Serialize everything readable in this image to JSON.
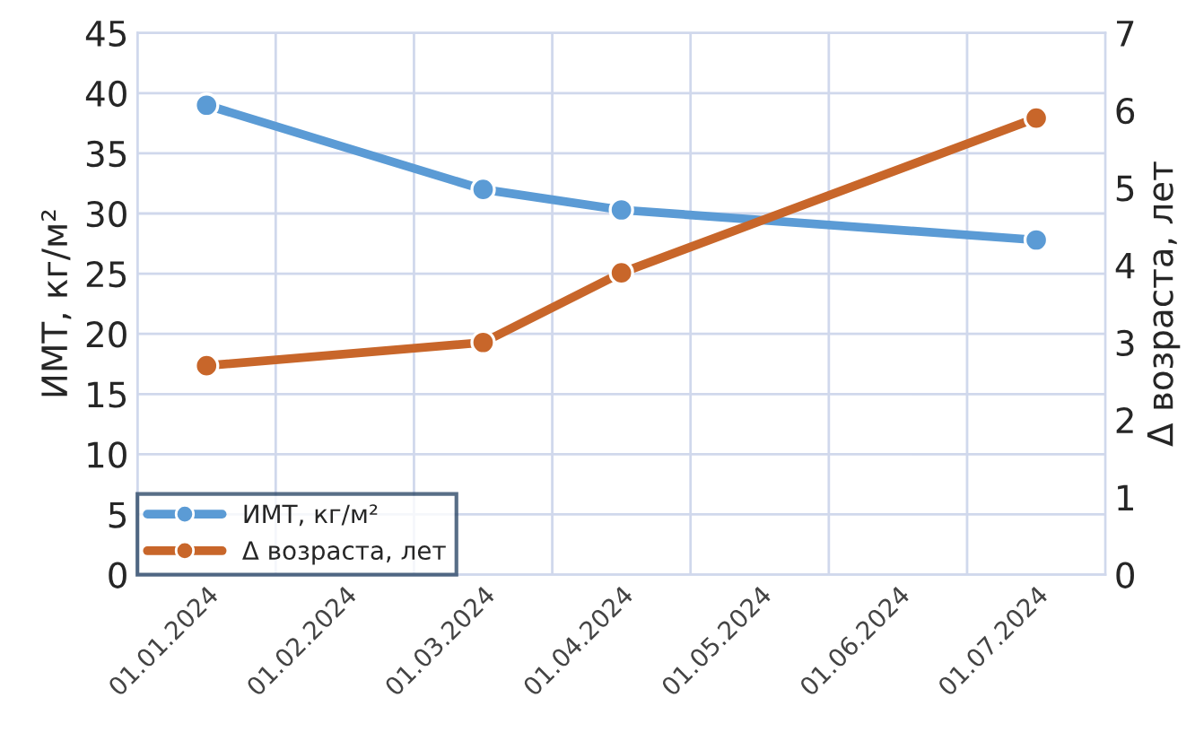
{
  "chart_data": {
    "type": "line",
    "categories": [
      "01.01.2024",
      "01.02.2024",
      "01.03.2024",
      "01.04.2024",
      "01.05.2024",
      "01.06.2024",
      "01.07.2024"
    ],
    "series": [
      {
        "name": "ИМТ, кг/м²",
        "color": "#5b9bd5",
        "values": [
          39,
          null,
          32,
          30.3,
          null,
          null,
          27.8
        ]
      },
      {
        "name": "Δ возраста, лет",
        "color": "#c8662a",
        "axis": "y2",
        "values": [
          2.7,
          null,
          3.0,
          3.9,
          null,
          null,
          5.9
        ]
      }
    ],
    "ylabel": "ИМТ, кг/м²",
    "y2label": "Δ возраста, лет",
    "ylim": [
      0,
      45
    ],
    "yticks": [
      0,
      5,
      10,
      15,
      20,
      25,
      30,
      35,
      40,
      45
    ],
    "y2lim": [
      0,
      7
    ],
    "y2ticks": [
      0,
      1,
      2,
      3,
      4,
      5,
      6,
      7
    ],
    "grid": true,
    "legend": "bottom left",
    "marker": "circle",
    "line_style": "solid"
  }
}
